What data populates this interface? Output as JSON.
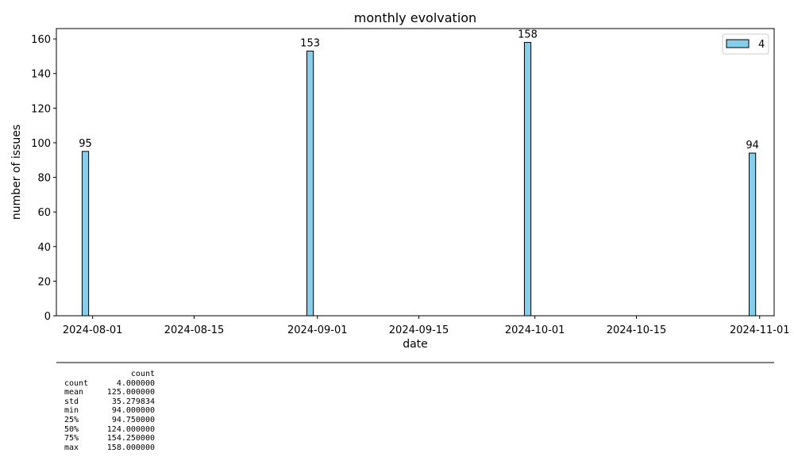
{
  "chart_data": {
    "type": "bar",
    "title": "monthly evolvation",
    "xlabel": "date",
    "ylabel": "number of issues",
    "x": [
      "2024-07-31",
      "2024-08-31",
      "2024-09-30",
      "2024-10-31"
    ],
    "series": [
      {
        "name": "4",
        "values": [
          95,
          153,
          158,
          94
        ]
      }
    ],
    "data_labels": [
      "95",
      "153",
      "158",
      "94"
    ],
    "xlim": [
      "2024-07-27",
      "2024-11-03"
    ],
    "ylim": [
      0,
      166
    ],
    "x_ticks": [
      "2024-08-01",
      "2024-08-15",
      "2024-09-01",
      "2024-09-15",
      "2024-10-01",
      "2024-10-15",
      "2024-11-01"
    ],
    "y_ticks": [
      0,
      20,
      40,
      60,
      80,
      100,
      120,
      140,
      160
    ],
    "grid": false,
    "legend_position": "top-right",
    "colors": {
      "bar_fill": "#87ceeb",
      "bar_edge": "#000000"
    }
  },
  "stats": {
    "header": "count",
    "rows": [
      {
        "label": "count",
        "value": "4.000000"
      },
      {
        "label": "mean",
        "value": "125.000000"
      },
      {
        "label": "std",
        "value": "35.279834"
      },
      {
        "label": "min",
        "value": "94.000000"
      },
      {
        "label": "25%",
        "value": "94.750000"
      },
      {
        "label": "50%",
        "value": "124.000000"
      },
      {
        "label": "75%",
        "value": "154.250000"
      },
      {
        "label": "max",
        "value": "158.000000"
      }
    ]
  }
}
